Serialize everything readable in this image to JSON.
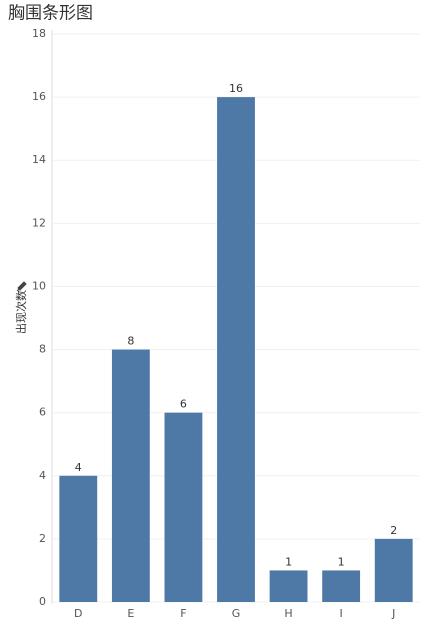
{
  "chart_data": {
    "type": "bar",
    "title": "胸围条形图",
    "y_label": "出现次数",
    "categories": [
      "D",
      "E",
      "F",
      "G",
      "H",
      "I",
      "J"
    ],
    "values": [
      4,
      8,
      6,
      16,
      1,
      1,
      2
    ],
    "color": "#4e79a7",
    "ylim": [
      0,
      18
    ],
    "yticks": [
      0,
      2,
      4,
      6,
      8,
      10,
      12,
      14,
      16,
      18
    ],
    "grid": true
  }
}
